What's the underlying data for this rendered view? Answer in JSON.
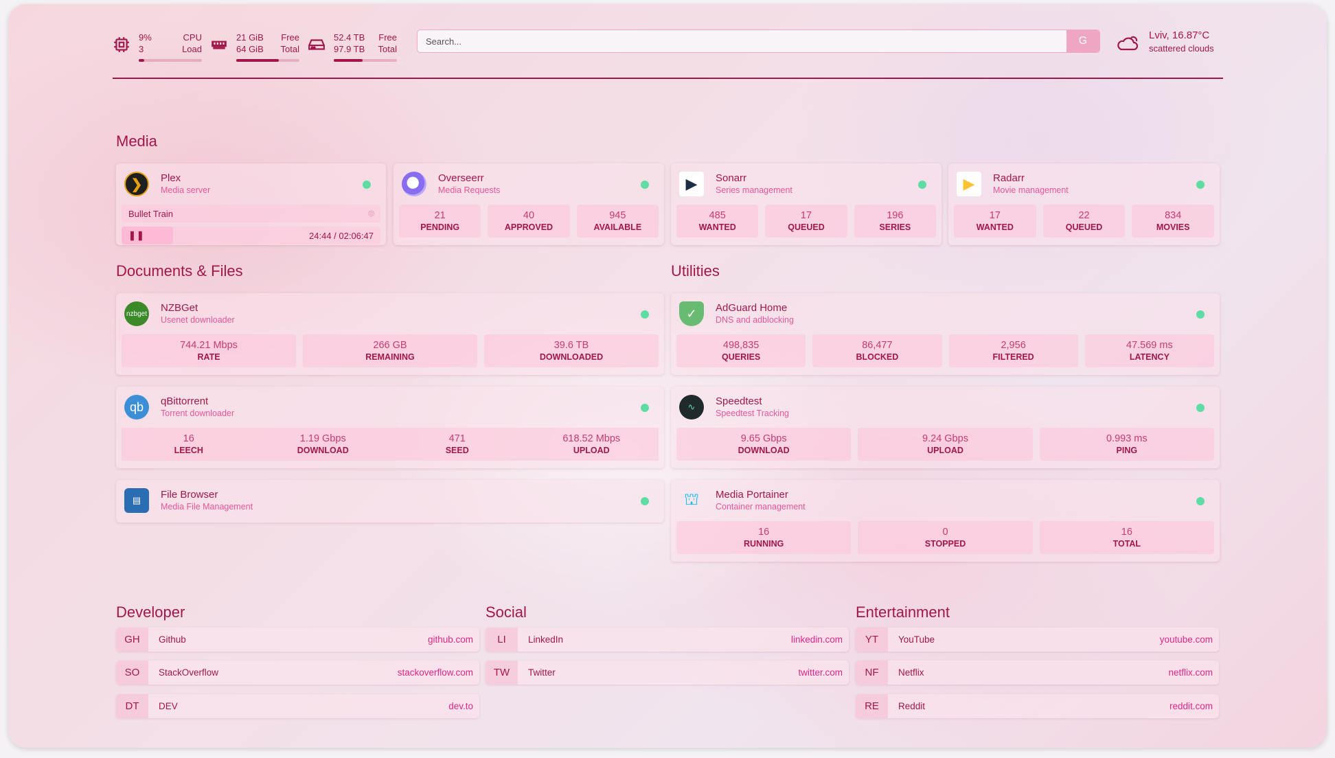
{
  "header": {
    "cpu": {
      "icon": "cpu-icon",
      "value": "9%",
      "sub": "3",
      "label1": "CPU",
      "label2": "Load",
      "fill_pct": 9
    },
    "memory": {
      "icon": "memory-icon",
      "value": "21 GiB",
      "sub": "64 GiB",
      "label1": "Free",
      "label2": "Total",
      "fill_pct": 67
    },
    "disk": {
      "icon": "disk-icon",
      "value": "52.4 TB",
      "sub": "97.9 TB",
      "label1": "Free",
      "label2": "Total",
      "fill_pct": 46
    },
    "search": {
      "placeholder": "Search...",
      "provider_button": "G"
    },
    "weather": {
      "icon": "cloud-icon",
      "location_temp": "Lviv, 16.87°C",
      "condition": "scattered clouds"
    }
  },
  "colors": {
    "primary": "#a3164a",
    "accent": "#e8559a",
    "status_online": "#5fdca3"
  },
  "sections": {
    "media": "Media",
    "docs": "Documents & Files",
    "utilities": "Utilities",
    "developer": "Developer",
    "social": "Social",
    "entertainment": "Entertainment"
  },
  "plex": {
    "name": "Plex",
    "desc": "Media server",
    "now_playing": "Bullet Train",
    "time": "24:44 / 02:06:47",
    "progress_pct": 20,
    "icon": "plex-icon"
  },
  "services": [
    {
      "name": "Overseerr",
      "desc": "Media Requests",
      "icon": "overseerr-icon",
      "stats": [
        {
          "v": "21",
          "l": "PENDING"
        },
        {
          "v": "40",
          "l": "APPROVED"
        },
        {
          "v": "945",
          "l": "AVAILABLE"
        }
      ]
    },
    {
      "name": "Sonarr",
      "desc": "Series management",
      "icon": "sonarr-icon",
      "stats": [
        {
          "v": "485",
          "l": "WANTED"
        },
        {
          "v": "17",
          "l": "QUEUED"
        },
        {
          "v": "196",
          "l": "SERIES"
        }
      ]
    },
    {
      "name": "Radarr",
      "desc": "Movie management",
      "icon": "radarr-icon",
      "stats": [
        {
          "v": "17",
          "l": "WANTED"
        },
        {
          "v": "22",
          "l": "QUEUED"
        },
        {
          "v": "834",
          "l": "MOVIES"
        }
      ]
    },
    {
      "name": "NZBGet",
      "desc": "Usenet downloader",
      "icon": "nzbget-icon",
      "stats": [
        {
          "v": "744.21 Mbps",
          "l": "RATE"
        },
        {
          "v": "266 GB",
          "l": "REMAINING"
        },
        {
          "v": "39.6 TB",
          "l": "DOWNLOADED"
        }
      ]
    },
    {
      "name": "qBittorrent",
      "desc": "Torrent downloader",
      "icon": "qbittorrent-icon",
      "stats": [
        {
          "v": "16",
          "l": "LEECH"
        },
        {
          "v": "1.19 Gbps",
          "l": "DOWNLOAD"
        },
        {
          "v": "471",
          "l": "SEED"
        },
        {
          "v": "618.52 Mbps",
          "l": "UPLOAD"
        }
      ]
    },
    {
      "name": "File Browser",
      "desc": "Media File Management",
      "icon": "filebrowser-icon",
      "stats": []
    },
    {
      "name": "AdGuard Home",
      "desc": "DNS and adblocking",
      "icon": "adguard-icon",
      "stats": [
        {
          "v": "498,835",
          "l": "QUERIES"
        },
        {
          "v": "86,477",
          "l": "BLOCKED"
        },
        {
          "v": "2,956",
          "l": "FILTERED"
        },
        {
          "v": "47.569 ms",
          "l": "LATENCY"
        }
      ]
    },
    {
      "name": "Speedtest",
      "desc": "Speedtest Tracking",
      "icon": "speedtest-icon",
      "stats": [
        {
          "v": "9.65 Gbps",
          "l": "DOWNLOAD"
        },
        {
          "v": "9.24 Gbps",
          "l": "UPLOAD"
        },
        {
          "v": "0.993 ms",
          "l": "PING"
        }
      ]
    },
    {
      "name": "Media Portainer",
      "desc": "Container management",
      "icon": "portainer-icon",
      "stats": [
        {
          "v": "16",
          "l": "RUNNING"
        },
        {
          "v": "0",
          "l": "STOPPED"
        },
        {
          "v": "16",
          "l": "TOTAL"
        }
      ]
    }
  ],
  "bookmarks": {
    "developer": [
      {
        "abbr": "GH",
        "name": "Github",
        "url": "github.com"
      },
      {
        "abbr": "SO",
        "name": "StackOverflow",
        "url": "stackoverflow.com"
      },
      {
        "abbr": "DT",
        "name": "DEV",
        "url": "dev.to"
      }
    ],
    "social": [
      {
        "abbr": "LI",
        "name": "LinkedIn",
        "url": "linkedin.com"
      },
      {
        "abbr": "TW",
        "name": "Twitter",
        "url": "twitter.com"
      }
    ],
    "entertainment": [
      {
        "abbr": "YT",
        "name": "YouTube",
        "url": "youtube.com"
      },
      {
        "abbr": "NF",
        "name": "Netflix",
        "url": "netflix.com"
      },
      {
        "abbr": "RE",
        "name": "Reddit",
        "url": "reddit.com"
      }
    ]
  }
}
